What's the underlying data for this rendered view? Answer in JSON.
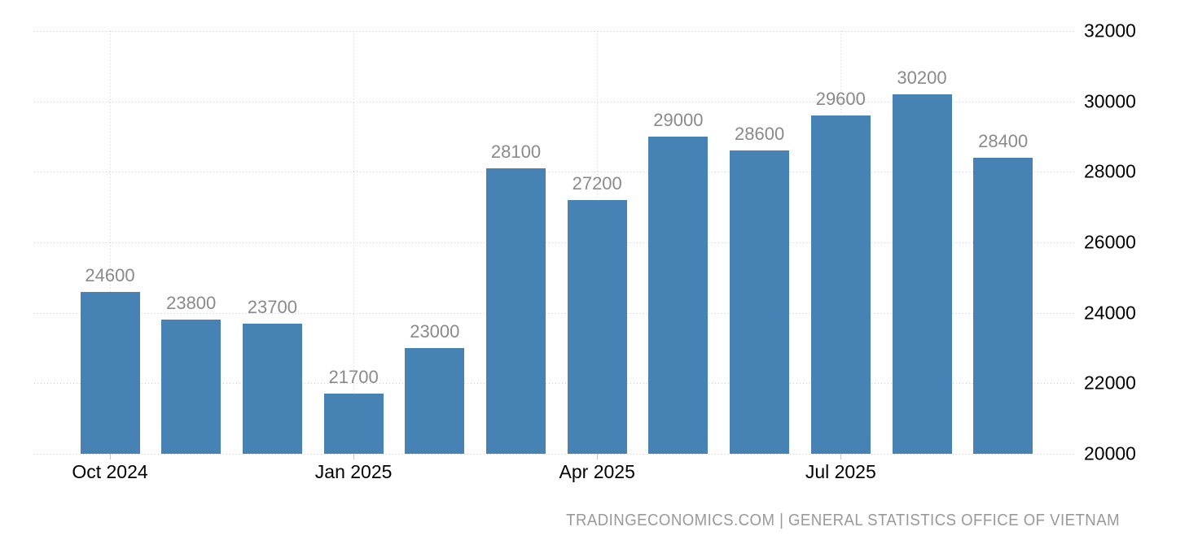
{
  "chart_data": {
    "type": "bar",
    "title": "",
    "values": [
      24600,
      23800,
      23700,
      21700,
      23000,
      28100,
      27200,
      29000,
      28600,
      29600,
      30200,
      28400
    ],
    "data_labels": [
      "24600",
      "23800",
      "23700",
      "21700",
      "23000",
      "28100",
      "27200",
      "29000",
      "28600",
      "29600",
      "30200",
      "28400"
    ],
    "x_tick_labels": [
      "Oct 2024",
      "Jan 2025",
      "Apr 2025",
      "Jul 2025"
    ],
    "x_tick_bar_indices": [
      0,
      3,
      6,
      9
    ],
    "y_ticks": [
      32000,
      30000,
      28000,
      26000,
      24000,
      22000,
      20000
    ],
    "ylim": [
      20000,
      32000
    ],
    "grid": "dotted horizontal and vertical",
    "legend": "none",
    "data_labels_shown": true
  },
  "footer": {
    "attribution": "TRADINGECONOMICS.COM | GENERAL STATISTICS OFFICE OF VIETNAM"
  },
  "colors": {
    "bar": "#4682b4",
    "data_label": "#8a8a8a",
    "axis_label": "#000000",
    "grid": "#d0d0d0",
    "tick": "#c4c4c4",
    "footer": "#999999",
    "background": "#ffffff"
  }
}
